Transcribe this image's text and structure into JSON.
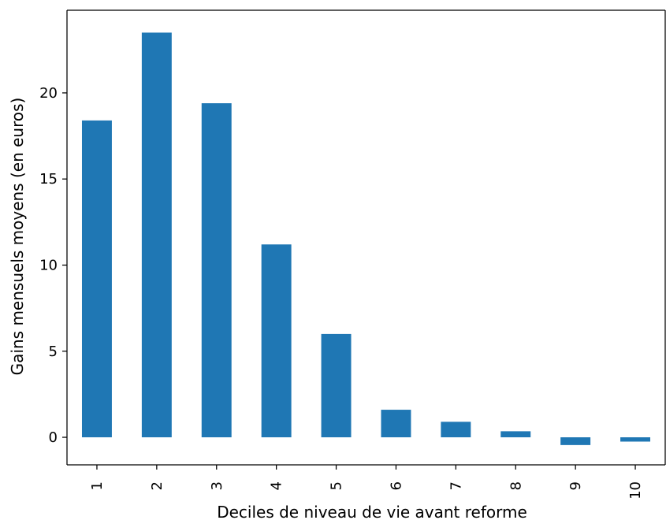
{
  "chart_data": {
    "type": "bar",
    "categories": [
      "1",
      "2",
      "3",
      "4",
      "5",
      "6",
      "7",
      "8",
      "9",
      "10"
    ],
    "values": [
      18.4,
      23.5,
      19.4,
      11.2,
      6.0,
      1.6,
      0.9,
      0.35,
      -0.45,
      -0.25
    ],
    "title": "",
    "xlabel": "Deciles de niveau de vie avant reforme",
    "ylabel": "Gains mensuels moyens (en euros)",
    "ylim": [
      -1.6,
      24.8
    ],
    "yticks": [
      0,
      5,
      10,
      15,
      20
    ],
    "ytick_labels": [
      "0",
      "5",
      "10",
      "15",
      "20"
    ],
    "grid": false,
    "legend": "none",
    "bar_color": "#1f77b4"
  }
}
